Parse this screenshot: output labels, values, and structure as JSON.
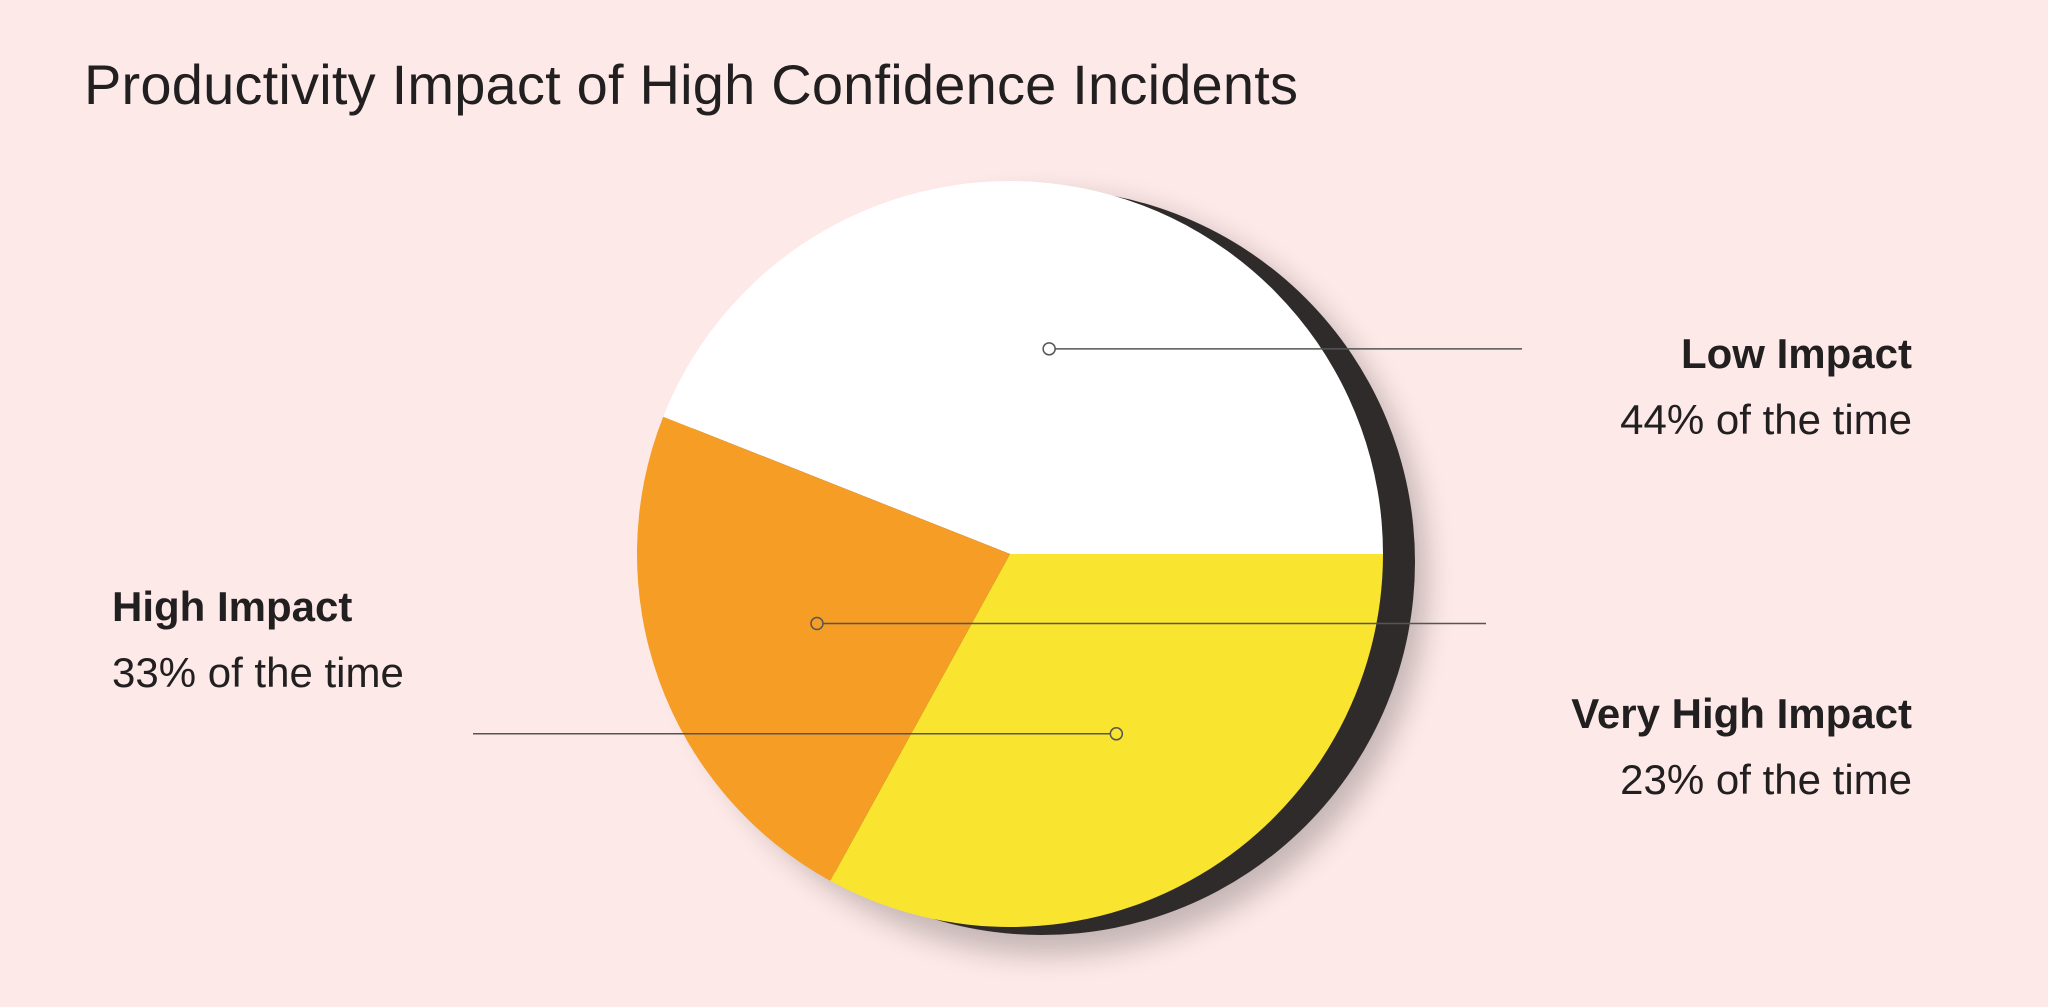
{
  "chart_data": {
    "type": "pie",
    "title": "Productivity Impact of High Confidence Incidents",
    "slices": [
      {
        "name": "Low Impact",
        "value": 44,
        "caption": "44% of the time",
        "color": "#ffffff"
      },
      {
        "name": "Very High Impact",
        "value": 23,
        "caption": "23% of the time",
        "color": "#f59d24"
      },
      {
        "name": "High Impact",
        "value": 33,
        "caption": "33% of the time",
        "color": "#f9e42f"
      }
    ],
    "shadow_color": "#2f2b2b",
    "leader_line_color": "#555555"
  }
}
